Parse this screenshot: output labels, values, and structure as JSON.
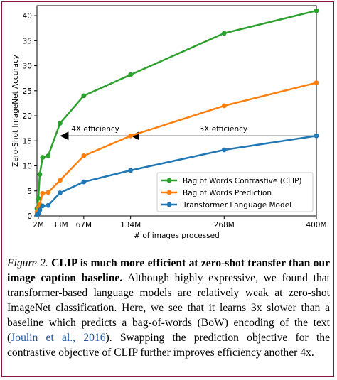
{
  "chart_data": {
    "type": "line",
    "xlabel": "# of images processed",
    "ylabel": "Zero-Shot ImageNet Accuracy",
    "xlim": [
      0,
      400
    ],
    "ylim": [
      0,
      42
    ],
    "x_ticks": [
      2,
      33,
      67,
      134,
      268,
      400
    ],
    "x_tick_labels": [
      "2M",
      "33M",
      "67M",
      "134M",
      "268M",
      "400M"
    ],
    "y_ticks": [
      0,
      5,
      10,
      15,
      20,
      25,
      30,
      35,
      40
    ],
    "legend_position": "lower-right",
    "series": [
      {
        "name": "Bag of Words Contrastive (CLIP)",
        "color": "#2ca02c",
        "x": [
          0,
          2,
          4,
          8,
          16,
          33,
          67,
          134,
          268,
          400
        ],
        "y": [
          1.5,
          3.5,
          8.3,
          11.7,
          12.0,
          18.5,
          24.0,
          28.2,
          36.5,
          41.0
        ]
      },
      {
        "name": "Bag of Words Prediction",
        "color": "#ff7f0e",
        "x": [
          0,
          2,
          4,
          8,
          16,
          33,
          67,
          134,
          268,
          400
        ],
        "y": [
          0.8,
          1.6,
          2.3,
          4.5,
          4.7,
          7.1,
          12.0,
          16.0,
          22.0,
          26.6
        ]
      },
      {
        "name": "Transformer Language Model",
        "color": "#1f77b4",
        "x": [
          0,
          2,
          4,
          8,
          16,
          33,
          67,
          134,
          268,
          400
        ],
        "y": [
          0.2,
          0.5,
          1.2,
          2.0,
          2.1,
          4.6,
          6.8,
          9.1,
          13.2,
          16.0
        ]
      }
    ],
    "annotations": [
      {
        "text": "4X efficiency",
        "from_x": 134,
        "to_x": 33,
        "y": 16
      },
      {
        "text": "3X efficiency",
        "from_x": 400,
        "to_x": 134,
        "y": 16
      }
    ]
  },
  "caption": {
    "fig_label": "Figure 2.",
    "bold_text": "CLIP is much more efficient at zero-shot transfer than our image caption baseline.",
    "body_1": "Although highly expressive, we found that transformer-based language models are relatively weak at zero-shot ImageNet classification. Here, we see that it learns 3x slower than a baseline which predicts a bag-of-words (BoW) encoding of the text (",
    "citation": "Joulin et al., 2016",
    "body_2": "). Swapping the prediction objective for the contrastive objective of CLIP further improves efficiency another 4x."
  }
}
